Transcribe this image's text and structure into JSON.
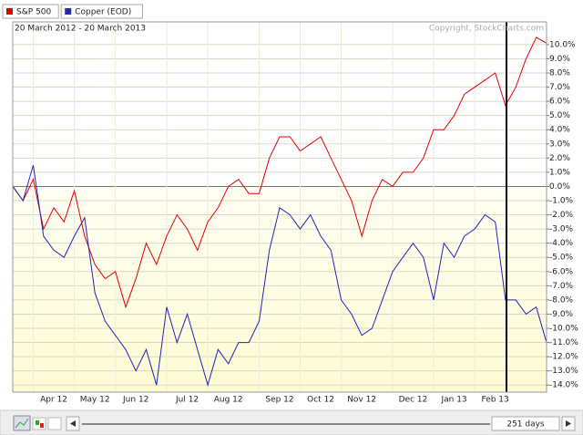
{
  "chart_data": {
    "type": "line",
    "subtitle": "20 March 2012 - 20 March 2013",
    "annotation": "Copyright, StockCharts.com",
    "categories": [
      null,
      null,
      null,
      null,
      "Apr 12",
      null,
      null,
      null,
      "May 12",
      null,
      null,
      null,
      "Jun 12",
      null,
      null,
      null,
      null,
      "Jul 12",
      null,
      null,
      null,
      "Aug 12",
      null,
      null,
      null,
      null,
      "Sep 12",
      null,
      null,
      null,
      "Oct 12",
      null,
      null,
      null,
      "Nov 12",
      null,
      null,
      null,
      null,
      "Dec 12",
      null,
      null,
      null,
      "Jan 13",
      null,
      null,
      null,
      "Feb 13",
      null,
      null,
      null,
      null,
      null
    ],
    "series": [
      {
        "name": "S&P 500",
        "color": "#e00000",
        "values": [
          0,
          -1.0,
          0.5,
          -3.0,
          -1.5,
          -2.5,
          -0.3,
          -3.5,
          -5.5,
          -6.5,
          -6.0,
          -8.5,
          -6.5,
          -4.0,
          -5.5,
          -3.5,
          -2.0,
          -3.0,
          -4.5,
          -2.5,
          -1.5,
          0.0,
          0.5,
          -0.5,
          -0.5,
          2.0,
          3.5,
          3.5,
          2.5,
          3.0,
          3.5,
          2.0,
          0.5,
          -1.0,
          -3.5,
          -1.0,
          0.5,
          0.0,
          1.0,
          1.0,
          2.0,
          4.0,
          4.0,
          5.0,
          6.5,
          7.0,
          7.5,
          8.0,
          5.7,
          7.0,
          9.0,
          10.5,
          10.1
        ]
      },
      {
        "name": "Copper (EOD)",
        "color": "#2424b8",
        "values": [
          0,
          -1.0,
          1.5,
          -3.5,
          -4.5,
          -5.0,
          -3.5,
          -2.2,
          -7.5,
          -9.5,
          -10.5,
          -11.5,
          -13.0,
          -11.5,
          -14.0,
          -8.5,
          -11.0,
          -9.0,
          -11.5,
          -14.0,
          -11.5,
          -12.5,
          -11.0,
          -11.0,
          -9.5,
          -4.5,
          -1.5,
          -2.0,
          -3.0,
          -2.0,
          -3.5,
          -4.5,
          -8.0,
          -9.0,
          -10.5,
          -10.0,
          -8.0,
          -6.0,
          -5.0,
          -4.0,
          -5.0,
          -8.0,
          -4.0,
          -5.0,
          -3.5,
          -3.0,
          -2.0,
          -2.5,
          -8.0,
          -8.0,
          -9.0,
          -8.5,
          -11.0
        ]
      }
    ],
    "ylim": [
      -14.5,
      11.6
    ],
    "yticks": [
      {
        "value": 10,
        "label": "10.0%"
      },
      {
        "value": 9,
        "label": "9.0%"
      },
      {
        "value": 8,
        "label": "8.0%"
      },
      {
        "value": 7,
        "label": "7.0%"
      },
      {
        "value": 6,
        "label": "6.0%"
      },
      {
        "value": 5,
        "label": "5.0%"
      },
      {
        "value": 4,
        "label": "4.0%"
      },
      {
        "value": 3,
        "label": "3.0%"
      },
      {
        "value": 2,
        "label": "2.0%"
      },
      {
        "value": 1,
        "label": "1.0%"
      },
      {
        "value": 0,
        "label": "0.0%"
      },
      {
        "value": -1,
        "label": "-1.0%"
      },
      {
        "value": -2,
        "label": "-2.0%"
      },
      {
        "value": -3,
        "label": "-3.0%"
      },
      {
        "value": -4,
        "label": "-4.0%"
      },
      {
        "value": -5,
        "label": "-5.0%"
      },
      {
        "value": -6,
        "label": "-6.0%"
      },
      {
        "value": -7,
        "label": "-7.0%"
      },
      {
        "value": -8,
        "label": "-8.0%"
      },
      {
        "value": -9,
        "label": "-9.0%"
      },
      {
        "value": -10,
        "label": "-10.0%"
      },
      {
        "value": -11,
        "label": "-11.0%"
      },
      {
        "value": -12,
        "label": "-12.0%"
      },
      {
        "value": -13,
        "label": "-13.0%"
      },
      {
        "value": -14,
        "label": "-14.0%"
      }
    ],
    "grid": true
  },
  "toolbar": {
    "range_label": "251 days"
  }
}
